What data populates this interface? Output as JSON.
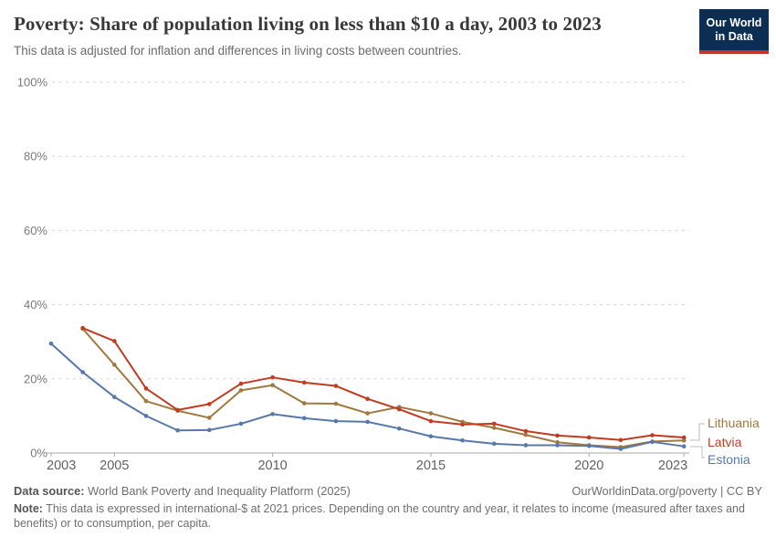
{
  "header": {
    "title": "Poverty: Share of population living on less than $10 a day, 2003 to 2023",
    "subtitle": "This data is adjusted for inflation and differences in living costs between countries.",
    "logo": {
      "line1": "Our World",
      "line2": "in Data"
    }
  },
  "chart_data": {
    "type": "line",
    "title": "Poverty: Share of population living on less than $10 a day, 2003 to 2023",
    "x": [
      2003,
      2004,
      2005,
      2006,
      2007,
      2008,
      2009,
      2010,
      2011,
      2012,
      2013,
      2014,
      2015,
      2016,
      2017,
      2018,
      2019,
      2020,
      2021,
      2022,
      2023
    ],
    "series": [
      {
        "name": "Lithuania",
        "color": "#A1793F",
        "values": [
          null,
          33.5,
          23.8,
          14.0,
          11.4,
          9.5,
          16.9,
          18.3,
          13.4,
          13.3,
          10.7,
          12.4,
          10.7,
          8.4,
          6.8,
          4.9,
          2.9,
          2.1,
          1.6,
          3.1,
          3.4
        ]
      },
      {
        "name": "Latvia",
        "color": "#C23B20",
        "values": [
          null,
          33.7,
          30.2,
          17.4,
          11.6,
          13.2,
          18.7,
          20.4,
          19.0,
          18.1,
          14.6,
          11.8,
          8.6,
          7.7,
          7.9,
          5.9,
          4.7,
          4.2,
          3.5,
          4.8,
          4.2
        ]
      },
      {
        "name": "Estonia",
        "color": "#5878A8",
        "values": [
          29.5,
          21.8,
          15.1,
          10.0,
          6.1,
          6.2,
          7.9,
          10.5,
          9.4,
          8.6,
          8.4,
          6.6,
          4.5,
          3.4,
          2.5,
          2.1,
          2.1,
          1.9,
          1.1,
          3.0,
          1.8
        ]
      }
    ],
    "xlabel": "",
    "ylabel": "",
    "ylim": [
      0,
      100
    ],
    "yticks": [
      0,
      20,
      40,
      60,
      80,
      100
    ],
    "ytick_suffix": "%",
    "xticks": [
      2003,
      2005,
      2010,
      2015,
      2020,
      2023
    ],
    "grid": "horizontal-dashed",
    "legend_position": "right",
    "grid_color": "#d6d6d6",
    "axis_color": "#a8a8a8",
    "tick_label_color": "#7a7a7a"
  },
  "footer": {
    "source_label": "Data source:",
    "source_text": "World Bank Poverty and Inequality Platform (2025)",
    "rights": "OurWorldinData.org/poverty | CC BY",
    "note_label": "Note:",
    "note_text": "This data is expressed in international-$ at 2021 prices. Depending on the country and year, it relates to income (measured after taxes and benefits) or to consumption, per capita."
  }
}
